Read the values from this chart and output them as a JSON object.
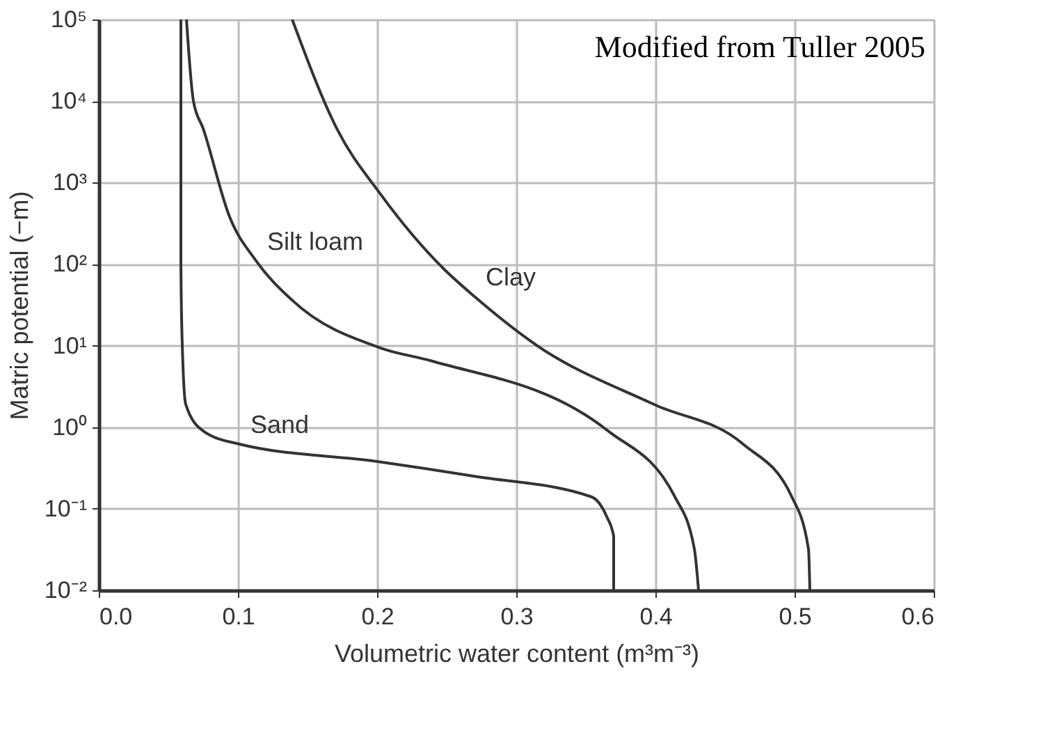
{
  "chart_data": {
    "type": "line",
    "xlabel": "Volumetric water content (m³m⁻³)",
    "ylabel": "Matric potential (−m)",
    "xlim": [
      0.0,
      0.6
    ],
    "xticks": [
      {
        "value": 0,
        "label": "0.0"
      },
      0.1,
      0.2,
      0.3,
      0.4,
      0.5,
      0.6
    ],
    "ylim": [
      0.01,
      100000
    ],
    "log": true,
    "yticks": [
      {
        "value": 0.01,
        "label": "10⁻²"
      },
      {
        "value": 0.1,
        "label": "10⁻¹"
      },
      {
        "value": 1,
        "label": "10⁰"
      },
      {
        "value": 10,
        "label": "10¹"
      },
      {
        "value": 100,
        "label": "10²"
      },
      {
        "value": 1000,
        "label": "10³"
      },
      {
        "value": 10000,
        "label": "10⁴"
      },
      {
        "value": 100000,
        "label": "10⁵"
      }
    ],
    "grid": true,
    "marker": "none",
    "line_style": "solid",
    "series": [
      {
        "color": "#333333",
        "x": [
          0.059,
          0.059,
          0.06,
          0.0625,
          0.075,
          0.101,
          0.2,
          0.27,
          0.354,
          0.365,
          0.37,
          0.37
        ],
        "values": [
          100000,
          100,
          10,
          1.9,
          0.9,
          0.62,
          0.38,
          0.25,
          0.14,
          0.08,
          0.046,
          0.01
        ]
      },
      {
        "color": "#333333",
        "x": [
          0.063,
          0.068,
          0.075,
          0.094,
          0.113,
          0.139,
          0.203,
          0.239,
          0.366,
          0.414,
          0.428,
          0.431
        ],
        "values": [
          100000,
          10000,
          4600,
          380,
          110,
          36,
          9.3,
          6.5,
          0.9,
          0.14,
          0.032,
          0.01
        ]
      },
      {
        "color": "#333333",
        "x": [
          0.139,
          0.171,
          0.203,
          0.248,
          0.27,
          0.315,
          0.399,
          0.463,
          0.498,
          0.51,
          0.511
        ],
        "values": [
          100000,
          4600,
          700,
          87,
          40,
          10,
          1.9,
          0.62,
          0.14,
          0.032,
          0.01
        ]
      }
    ],
    "annotations": [
      {
        "text": "Sand",
        "x": 0.101,
        "y": 0.62
      },
      {
        "text": "Silt loam",
        "x": 0.113,
        "y": 110
      },
      {
        "text": "Clay",
        "x": 0.27,
        "y": 40
      },
      "Modified from Tuller 2005"
    ]
  }
}
